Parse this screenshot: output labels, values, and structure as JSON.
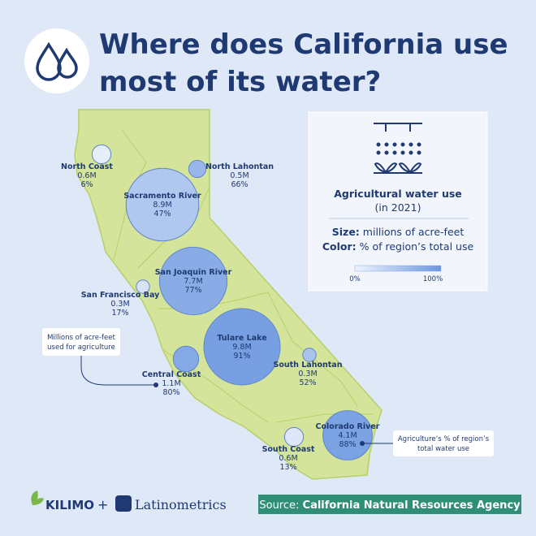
{
  "header": {
    "title_lines": [
      "Where does California use",
      "most of its water?"
    ]
  },
  "legend": {
    "title": "Agricultural water use",
    "subtitle": "(in 2021)",
    "size_key": "Size:",
    "size_text": "millions of acre-feet",
    "color_key": "Color:",
    "color_text": "% of region’s total use",
    "scale_min": "0%",
    "scale_max": "100%"
  },
  "regions": [
    {
      "name": "North Coast",
      "value": 0.6,
      "value_label": "0.6M",
      "share": 6,
      "share_label": "6%"
    },
    {
      "name": "North Lahontan",
      "value": 0.5,
      "value_label": "0.5M",
      "share": 66,
      "share_label": "66%"
    },
    {
      "name": "Sacramento River",
      "value": 8.9,
      "value_label": "8.9M",
      "share": 47,
      "share_label": "47%"
    },
    {
      "name": "San Joaquin River",
      "value": 7.7,
      "value_label": "7.7M",
      "share": 77,
      "share_label": "77%"
    },
    {
      "name": "San Francisco Bay",
      "value": 0.3,
      "value_label": "0.3M",
      "share": 17,
      "share_label": "17%"
    },
    {
      "name": "Tulare Lake",
      "value": 9.8,
      "value_label": "9.8M",
      "share": 91,
      "share_label": "91%"
    },
    {
      "name": "South Lahontan",
      "value": 0.3,
      "value_label": "0.3M",
      "share": 52,
      "share_label": "52%"
    },
    {
      "name": "Central Coast",
      "value": 1.1,
      "value_label": "1.1M",
      "share": 80,
      "share_label": "80%"
    },
    {
      "name": "Colorado River",
      "value": 4.1,
      "value_label": "4.1M",
      "share": 88,
      "share_label": "88%"
    },
    {
      "name": "South Coast",
      "value": 0.6,
      "value_label": "0.6M",
      "share": 13,
      "share_label": "13%"
    }
  ],
  "annotations": {
    "size_note": [
      "Millions of acre-feet",
      "used for agriculture"
    ],
    "share_note": [
      "Agriculture’s % of region’s",
      "total water use"
    ]
  },
  "footer": {
    "brand_left": "KILIMO",
    "plus": "+",
    "brand_right": "Latinometrics",
    "source_key": "Source:",
    "source_text": "California Natural Resources Agency"
  }
}
